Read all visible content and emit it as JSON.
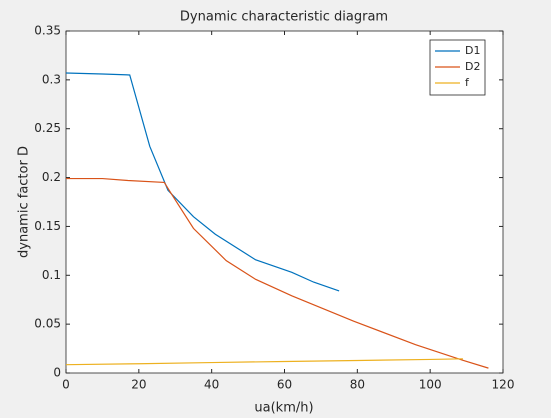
{
  "chart_data": {
    "type": "line",
    "title": "Dynamic characteristic diagram",
    "xlabel": "ua(km/h)",
    "ylabel": "dynamic factor D",
    "xlim": [
      0,
      120
    ],
    "xticks": [
      0,
      20,
      40,
      60,
      80,
      100,
      120
    ],
    "ylim": [
      0,
      0.35
    ],
    "yticks": [
      0,
      0.05,
      0.1,
      0.15,
      0.2,
      0.25,
      0.3,
      0.35
    ],
    "grid": false,
    "legend": "top-right",
    "series": [
      {
        "name": "D1",
        "color": "#0072bd",
        "x": [
          0,
          10,
          17.5,
          23,
          28,
          35,
          41,
          52,
          62,
          68,
          75
        ],
        "values": [
          0.307,
          0.306,
          0.305,
          0.232,
          0.187,
          0.16,
          0.142,
          0.116,
          0.103,
          0.093,
          0.084
        ]
      },
      {
        "name": "D2",
        "color": "#d95319",
        "x": [
          0,
          10,
          17,
          27,
          29,
          35,
          44,
          52,
          62,
          79,
          96,
          109,
          116
        ],
        "values": [
          0.199,
          0.199,
          0.197,
          0.195,
          0.183,
          0.148,
          0.115,
          0.096,
          0.079,
          0.053,
          0.029,
          0.013,
          0.005
        ]
      },
      {
        "name": "f",
        "color": "#edb120",
        "x": [
          0,
          20,
          40,
          60,
          80,
          100,
          109
        ],
        "values": [
          0.0085,
          0.0095,
          0.0107,
          0.0118,
          0.0128,
          0.0139,
          0.0145
        ]
      }
    ]
  }
}
